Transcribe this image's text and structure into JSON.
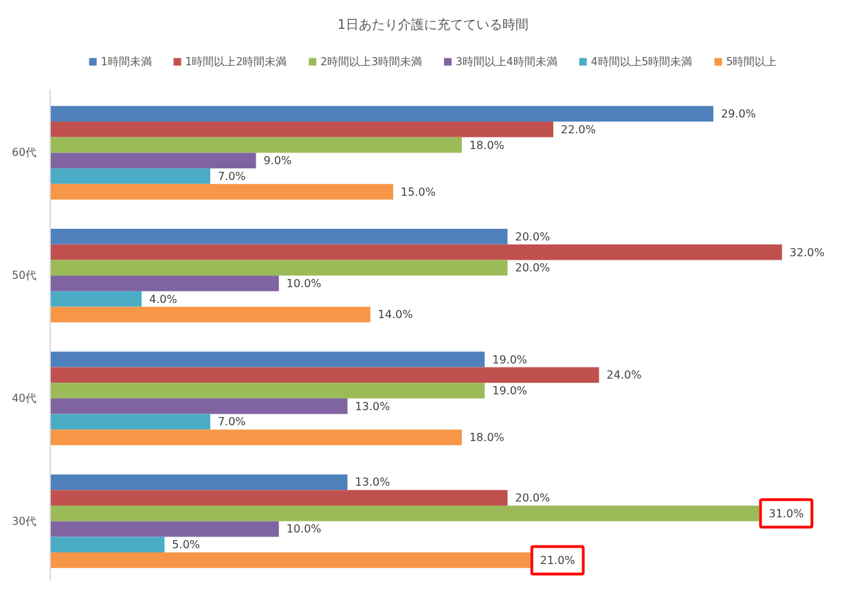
{
  "chart_data": {
    "type": "bar",
    "orientation": "horizontal",
    "title": "1日あたり介護に充てている時間",
    "categories": [
      "60代",
      "50代",
      "40代",
      "30代"
    ],
    "legend": "top",
    "series": [
      {
        "name": "1時間未満",
        "color": "#4f81bd",
        "values": [
          29,
          20,
          19,
          13
        ],
        "value_labels": [
          "29.0%",
          "20.0%",
          "19.0%",
          "13.0%"
        ]
      },
      {
        "name": "1時間以上2時間未満",
        "color": "#c0504d",
        "values": [
          22,
          32,
          24,
          20
        ],
        "value_labels": [
          "22.0%",
          "32.0%",
          "24.0%",
          "20.0%"
        ]
      },
      {
        "name": "2時間以上3時間未満",
        "color": "#9bbb59",
        "values": [
          18,
          20,
          19,
          31
        ],
        "value_labels": [
          "18.0%",
          "20.0%",
          "19.0%",
          null
        ]
      },
      {
        "name": "3時間以上4時間未満",
        "color": "#8064a2",
        "values": [
          9,
          10,
          13,
          10
        ],
        "value_labels": [
          "9.0%",
          "10.0%",
          "13.0%",
          "10.0%"
        ]
      },
      {
        "name": "4時間以上5時間未満",
        "color": "#4bacc6",
        "values": [
          7,
          4,
          7,
          5
        ],
        "value_labels": [
          "7.0%",
          "4.0%",
          "7.0%",
          "5.0%"
        ]
      },
      {
        "name": "5時間以上",
        "color": "#f79646",
        "values": [
          15,
          14,
          18,
          21
        ],
        "value_labels": [
          "15.0%",
          "14.0%",
          "18.0%",
          null
        ]
      }
    ],
    "annotations": [
      {
        "text": "31.0%",
        "x": 31
      },
      {
        "text": "21.0%",
        "x": 21
      }
    ]
  }
}
